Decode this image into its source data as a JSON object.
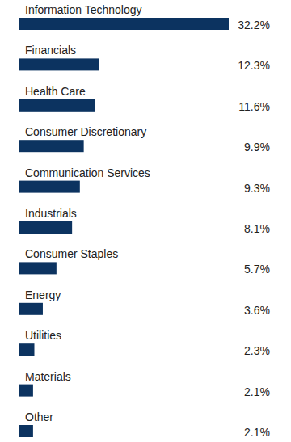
{
  "chart_data": {
    "type": "bar",
    "orientation": "horizontal",
    "categories": [
      "Information Technology",
      "Financials",
      "Health Care",
      "Consumer Discretionary",
      "Communication Services",
      "Industrials",
      "Consumer Staples",
      "Energy",
      "Utilities",
      "Materials",
      "Other"
    ],
    "values": [
      32.2,
      12.3,
      11.6,
      9.9,
      9.3,
      8.1,
      5.7,
      3.6,
      2.3,
      2.1,
      2.1
    ],
    "value_labels": [
      "32.2%",
      "12.3%",
      "11.6%",
      "9.9%",
      "9.3%",
      "8.1%",
      "5.7%",
      "3.6%",
      "2.3%",
      "2.1%",
      "2.1%"
    ],
    "color": "#0c3360",
    "xlim": [
      0,
      32.2
    ],
    "data_labels": true,
    "tick_labels": "y",
    "grid": false
  }
}
